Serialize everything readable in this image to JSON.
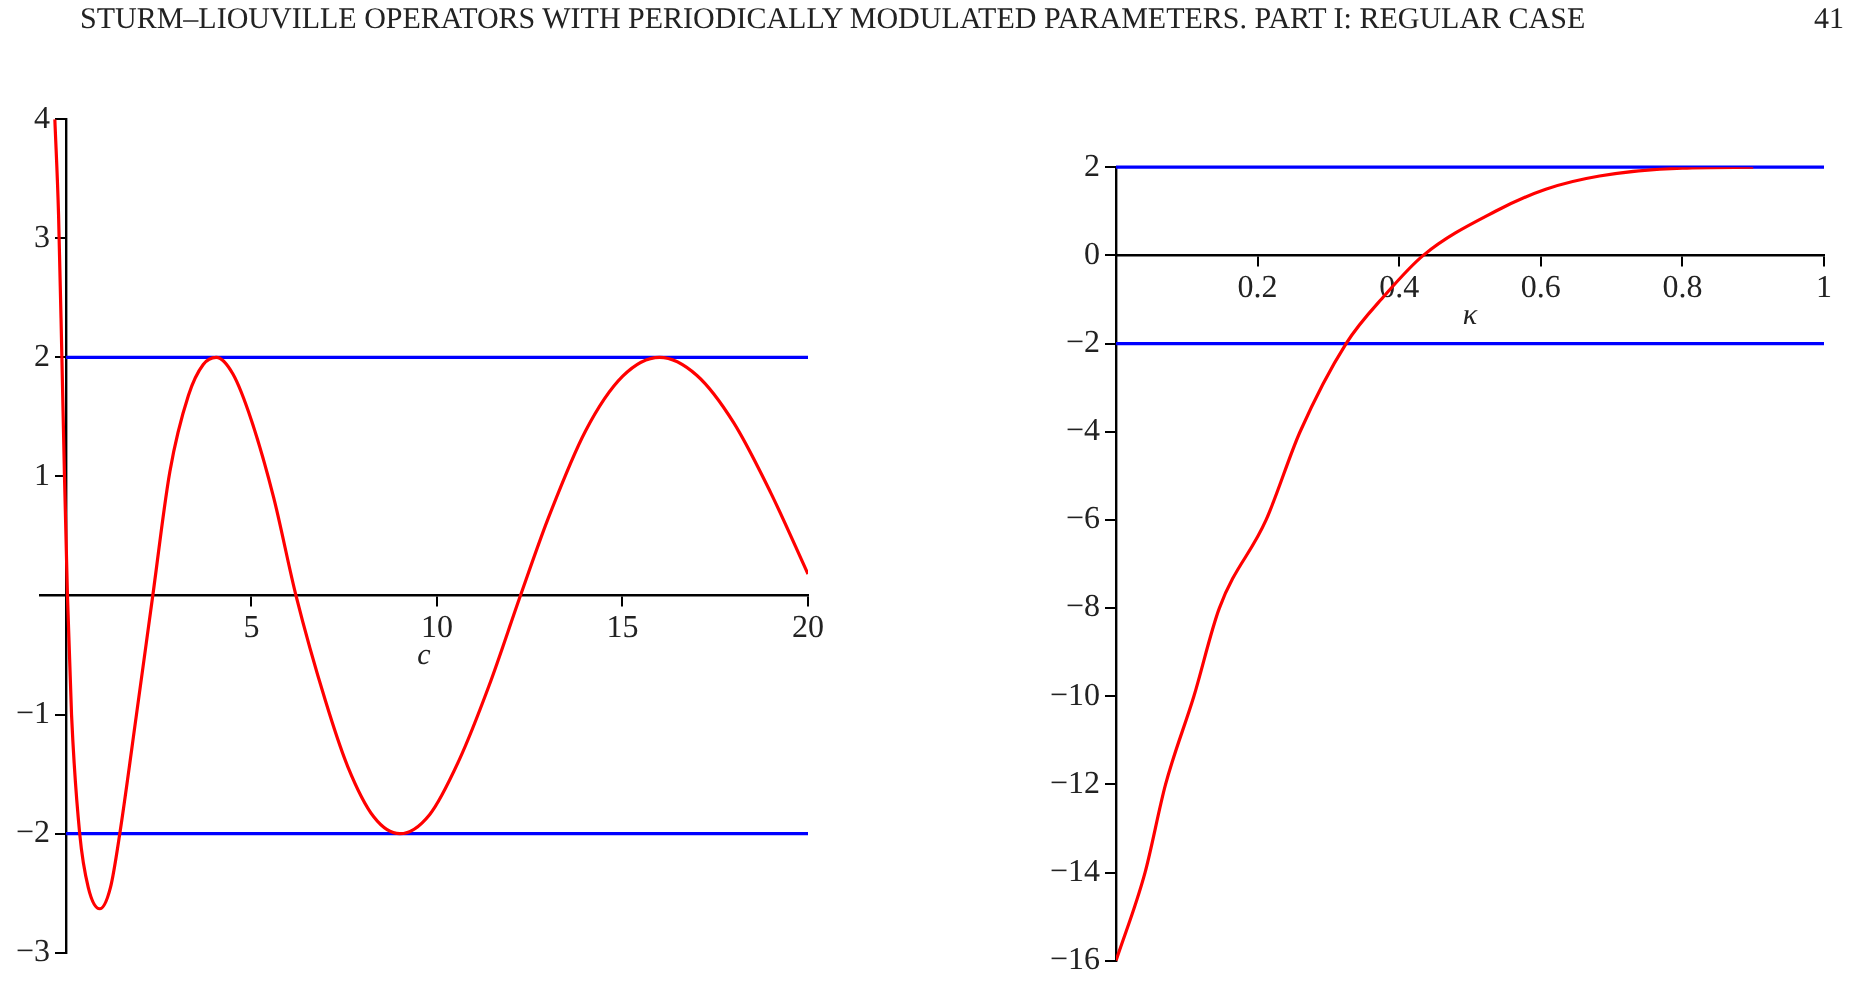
{
  "chart_data": [
    {
      "type": "line",
      "title": "STURM–LIOUVILLE OPERATORS WITH PERIODICALLY MODULATED PARAMETERS. PART I: REGULAR CASE",
      "xlabel": "c",
      "xlim": [
        -0.7,
        20
      ],
      "xticks": [
        5,
        10,
        15,
        20
      ],
      "ylim": [
        -3,
        4
      ],
      "yticks": [
        -3,
        -2,
        -1,
        1,
        2,
        3,
        4
      ],
      "grid": false,
      "series": [
        {
          "color": "#ff0000",
          "x": [
            -0.3,
            -0.2,
            -0.11,
            -0.04,
            0.04,
            0.15,
            0.37,
            0.6,
            0.91,
            1.2,
            1.45,
            1.9,
            2.34,
            2.8,
            3.3,
            3.7,
            4.05,
            4.5,
            5,
            5.6,
            6.2,
            7,
            7.6,
            8.3,
            9,
            9.8,
            10.6,
            11.4,
            12.25,
            13,
            14,
            15,
            16,
            17,
            18,
            19,
            20
          ],
          "values": [
            4,
            3.2,
            2,
            1,
            0,
            -1,
            -2,
            -2.45,
            -2.63,
            -2.45,
            -2,
            -1,
            0,
            1.04,
            1.68,
            1.94,
            2,
            1.86,
            1.47,
            0.82,
            0,
            -0.89,
            -1.44,
            -1.86,
            -2,
            -1.84,
            -1.38,
            -0.76,
            0,
            0.65,
            1.38,
            1.84,
            2,
            1.85,
            1.45,
            0.86,
            0.18
          ]
        }
      ],
      "ref_lines": [
        {
          "axis": "y",
          "value": 2,
          "color": "#0000ff"
        },
        {
          "axis": "y",
          "value": -2,
          "color": "#0000ff"
        }
      ]
    },
    {
      "type": "line",
      "xlabel": "κ",
      "xlim": [
        0,
        1
      ],
      "xticks": [
        0.2,
        0.4,
        0.6,
        0.8,
        1
      ],
      "ylim": [
        -16,
        2
      ],
      "yticks": [
        -16,
        -14,
        -12,
        -10,
        -8,
        -6,
        -4,
        -2,
        0,
        2
      ],
      "grid": false,
      "annotations": [
        "41"
      ],
      "series": [
        {
          "color": "#ff0000",
          "x": [
            0,
            0.041,
            0.07,
            0.11,
            0.146,
            0.212,
            0.26,
            0.325,
            0.38,
            0.434,
            0.536,
            0.607,
            0.683,
            0.8,
            0.9
          ],
          "values": [
            -16,
            -14,
            -12,
            -10,
            -8,
            -6,
            -4,
            -2,
            -0.9,
            0,
            1,
            1.5,
            1.8,
            1.98,
            2
          ]
        }
      ],
      "ref_lines": [
        {
          "axis": "y",
          "value": 2,
          "color": "#0000ff"
        },
        {
          "axis": "y",
          "value": -2,
          "color": "#0000ff"
        }
      ]
    }
  ]
}
